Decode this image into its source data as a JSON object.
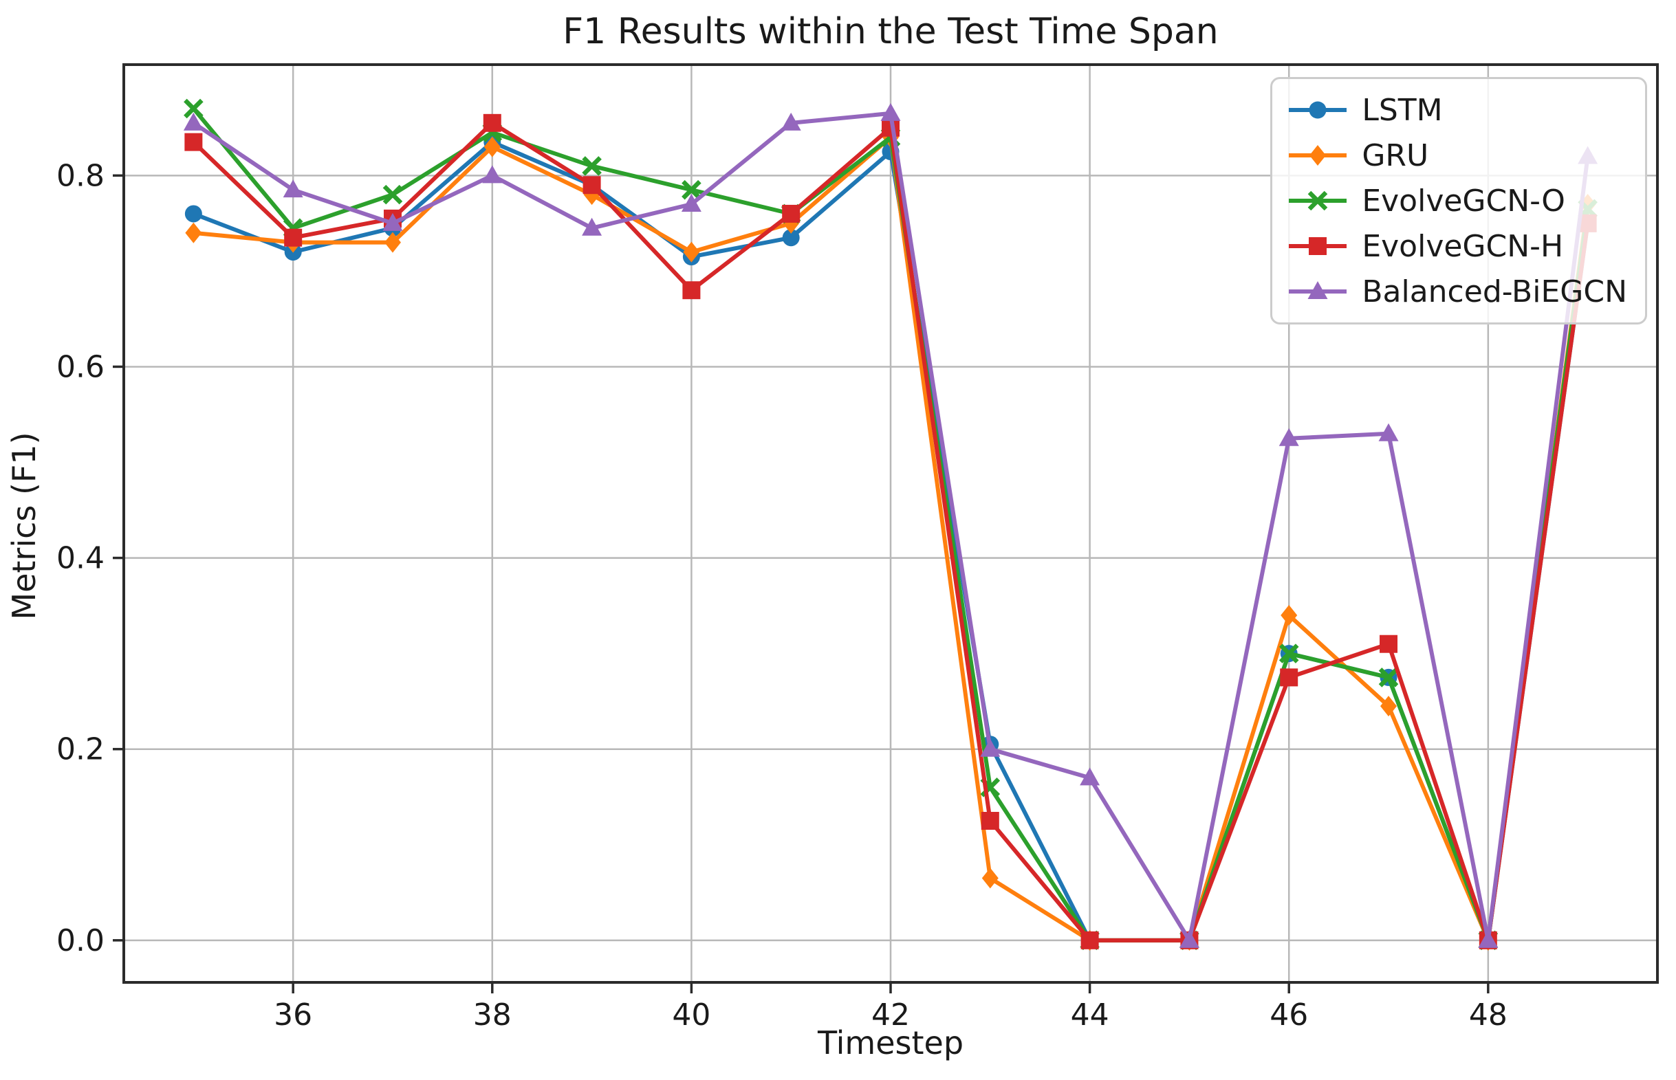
{
  "chart_data": {
    "type": "line",
    "title": "F1 Results within the Test Time Span",
    "xlabel": "Timestep",
    "ylabel": "Metrics (F1)",
    "x": [
      35,
      36,
      37,
      38,
      39,
      40,
      41,
      42,
      43,
      44,
      45,
      46,
      47,
      48,
      49
    ],
    "xticks": [
      36,
      38,
      40,
      42,
      44,
      46,
      48
    ],
    "yticks": [
      "0.0",
      "0.2",
      "0.4",
      "0.6",
      "0.8"
    ],
    "xlim": [
      34.3,
      49.7
    ],
    "ylim": [
      -0.044,
      0.916
    ],
    "grid": true,
    "legend_position": "upper right",
    "grid_color": "#b8b8b8",
    "spine_color": "#2b2b2b",
    "series": [
      {
        "name": "LSTM",
        "color": "#1f77b4",
        "marker": "circle",
        "values": [
          0.76,
          0.72,
          0.745,
          0.835,
          0.79,
          0.715,
          0.735,
          0.825,
          0.205,
          0.0,
          0.0,
          0.3,
          0.275,
          0.0,
          0.75
        ]
      },
      {
        "name": "GRU",
        "color": "#ff7f0e",
        "marker": "diamond",
        "values": [
          0.74,
          0.73,
          0.73,
          0.83,
          0.78,
          0.72,
          0.75,
          0.84,
          0.065,
          0.0,
          0.0,
          0.34,
          0.245,
          0.0,
          0.77
        ]
      },
      {
        "name": "EvolveGCN-O",
        "color": "#2ca02c",
        "marker": "x",
        "values": [
          0.87,
          0.745,
          0.78,
          0.845,
          0.81,
          0.785,
          0.76,
          0.84,
          0.16,
          0.0,
          0.0,
          0.3,
          0.275,
          0.0,
          0.765
        ]
      },
      {
        "name": "EvolveGCN-H",
        "color": "#d62728",
        "marker": "square",
        "values": [
          0.835,
          0.735,
          0.755,
          0.855,
          0.79,
          0.68,
          0.76,
          0.85,
          0.125,
          0.0,
          0.0,
          0.275,
          0.31,
          0.0,
          0.75
        ]
      },
      {
        "name": "Balanced-BiEGCN",
        "color": "#9467bd",
        "marker": "triangle",
        "values": [
          0.855,
          0.785,
          0.75,
          0.8,
          0.745,
          0.77,
          0.855,
          0.865,
          0.2,
          0.17,
          0.0,
          0.525,
          0.53,
          0.0,
          0.82
        ]
      }
    ]
  }
}
